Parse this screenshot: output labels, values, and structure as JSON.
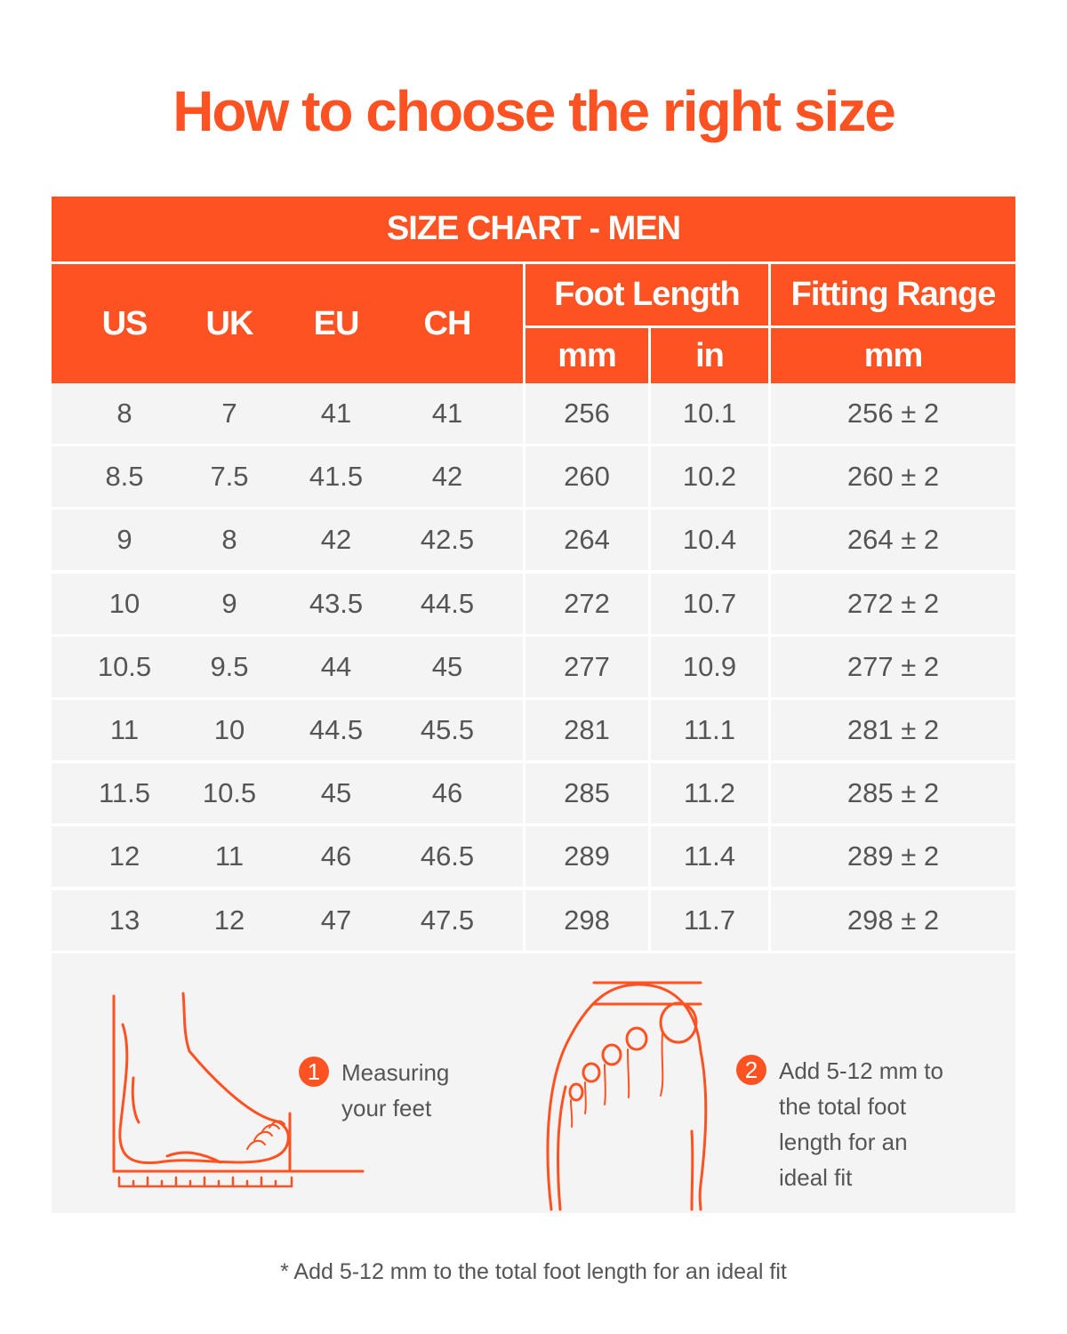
{
  "title": "How to choose the right size",
  "table": {
    "banner": "SIZE CHART - MEN",
    "headers": {
      "us": "US",
      "uk": "UK",
      "eu": "EU",
      "ch": "CH",
      "foot_length": "Foot Length",
      "fitting_range": "Fitting Range",
      "mm": "mm",
      "in": "in",
      "fr_mm": "mm"
    },
    "rows": [
      [
        "8",
        "7",
        "41",
        "41",
        "256",
        "10.1",
        "256 ± 2"
      ],
      [
        "8.5",
        "7.5",
        "41.5",
        "42",
        "260",
        "10.2",
        "260 ± 2"
      ],
      [
        "9",
        "8",
        "42",
        "42.5",
        "264",
        "10.4",
        "264 ± 2"
      ],
      [
        "10",
        "9",
        "43.5",
        "44.5",
        "272",
        "10.7",
        "272 ± 2"
      ],
      [
        "10.5",
        "9.5",
        "44",
        "45",
        "277",
        "10.9",
        "277 ± 2"
      ],
      [
        "11",
        "10",
        "44.5",
        "45.5",
        "281",
        "11.1",
        "281 ± 2"
      ],
      [
        "11.5",
        "10.5",
        "45",
        "46",
        "285",
        "11.2",
        "285 ± 2"
      ],
      [
        "12",
        "11",
        "46",
        "46.5",
        "289",
        "11.4",
        "289 ± 2"
      ],
      [
        "13",
        "12",
        "47",
        "47.5",
        "298",
        "11.7",
        "298 ± 2"
      ]
    ]
  },
  "steps": [
    {
      "number": "1",
      "lines": [
        "Measuring",
        "your feet"
      ],
      "icon": "foot-side-ruler-icon"
    },
    {
      "number": "2",
      "lines": [
        "Add 5-12 mm to",
        "the total foot",
        "length for an",
        "ideal fit"
      ],
      "icon": "foot-top-toe-gap-icon"
    }
  ],
  "footnote": "* Add 5-12 mm to the total foot length for an ideal fit",
  "colors": {
    "accent": "#fe5222",
    "row_bg": "#f4f4f4",
    "text": "#555555"
  }
}
